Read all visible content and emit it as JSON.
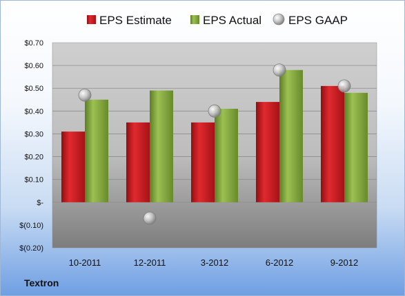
{
  "company": "Textron",
  "chart_data": {
    "type": "bar",
    "categories": [
      "10-2011",
      "12-2011",
      "3-2012",
      "6-2012",
      "9-2012"
    ],
    "series": [
      {
        "name": "EPS Estimate",
        "kind": "bar",
        "color": "#c0151c",
        "values": [
          0.31,
          0.35,
          0.35,
          0.44,
          0.51
        ]
      },
      {
        "name": "EPS Actual",
        "kind": "bar",
        "color": "#7fa43a",
        "values": [
          0.45,
          0.49,
          0.41,
          0.58,
          0.48
        ]
      },
      {
        "name": "EPS GAAP",
        "kind": "scatter",
        "color": "#b9b9b9",
        "values": [
          0.47,
          -0.07,
          0.4,
          0.58,
          0.51
        ]
      }
    ],
    "yticks": [
      "$0.70",
      "$0.60",
      "$0.50",
      "$0.40",
      "$0.30",
      "$0.20",
      "$0.10",
      "$-",
      "$(0.10)",
      "$(0.20)"
    ],
    "ylim": [
      -0.2,
      0.7
    ],
    "grid": true,
    "legend_position": "top"
  }
}
